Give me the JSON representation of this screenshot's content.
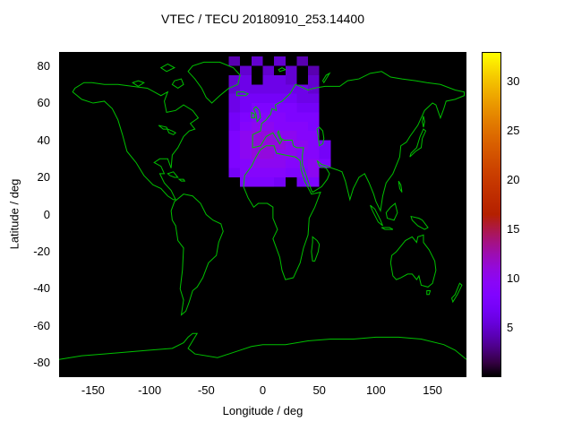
{
  "chart_data": {
    "type": "heatmap",
    "title": "VTEC / TECU 20180910_253.14400",
    "xlabel": "Longitude / deg",
    "ylabel": "Latitude / deg",
    "xlim": [
      -180,
      180
    ],
    "ylim": [
      -87.5,
      87.5
    ],
    "xticks": [
      -150,
      -100,
      -50,
      0,
      50,
      100,
      150
    ],
    "yticks": [
      -80,
      -60,
      -40,
      -20,
      0,
      20,
      40,
      60,
      80
    ],
    "grid": false,
    "colors": {
      "page_background": "#ffffff",
      "plot_background": "#000000",
      "coastline": "#00c000",
      "text": "#000000"
    },
    "palette": {
      "name": "gnuplot default pm3d (rgbformulae 7,5,15: black-violet-magenta-red-orange-yellow)",
      "min": 0,
      "max": 33
    },
    "colorbar": {
      "position": "right",
      "ticks": [
        5,
        10,
        15,
        20,
        25,
        30
      ]
    },
    "heatmap": {
      "units": "TECU",
      "lon_start": -30,
      "lat_top": 85,
      "cell_deg": {
        "lon": 10,
        "lat": 5
      },
      "row_order": "north-to-south",
      "col_lons": [
        -30,
        -20,
        -10,
        0,
        10,
        20,
        30,
        40,
        50
      ],
      "values": [
        [
          4,
          null,
          5,
          null,
          5,
          null,
          4,
          null,
          null
        ],
        [
          null,
          5,
          null,
          5,
          null,
          5,
          null,
          4,
          null
        ],
        [
          5,
          6,
          null,
          6,
          6,
          5,
          null,
          5,
          null
        ],
        [
          5,
          6,
          6,
          6,
          6,
          6,
          6,
          5,
          null
        ],
        [
          6,
          7,
          7,
          7,
          7,
          7,
          6,
          6,
          null
        ],
        [
          6,
          7,
          8,
          8,
          8,
          8,
          7,
          7,
          null
        ],
        [
          7,
          8,
          9,
          9,
          9,
          8,
          8,
          8,
          null
        ],
        [
          7,
          9,
          10,
          10,
          9,
          9,
          9,
          8,
          null
        ],
        [
          8,
          10,
          11,
          11,
          10,
          10,
          9,
          9,
          null
        ],
        [
          8,
          10,
          11,
          11,
          11,
          10,
          10,
          9,
          7
        ],
        [
          8,
          10,
          11,
          11,
          10,
          10,
          9,
          9,
          7
        ],
        [
          8,
          9,
          10,
          10,
          10,
          9,
          9,
          10,
          8
        ],
        [
          7,
          9,
          9,
          9,
          9,
          8,
          8,
          10,
          null
        ],
        [
          null,
          8,
          8,
          8,
          7,
          null,
          7,
          8,
          null
        ]
      ]
    }
  }
}
